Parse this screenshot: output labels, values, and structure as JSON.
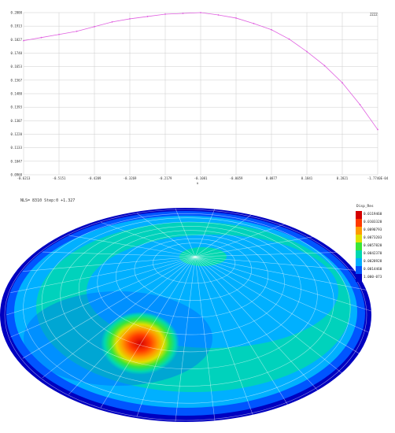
{
  "chart_data": {
    "type": "line",
    "legend_label": "ZZZZ",
    "legend_position": "top-right",
    "grid": true,
    "line_color": "#e060e0",
    "x_axis_label": "u",
    "x_ticks": [
      "-0.6213",
      "-0.5151",
      "-0.4209",
      "-0.3269",
      "-0.2179",
      "-0.1081",
      "-0.0059",
      "0.0877",
      "0.1841",
      "0.2821",
      "-1.7740E-04"
    ],
    "y_ticks": [
      "0.2000",
      "0.1913",
      "0.1827",
      "0.1740",
      "0.1653",
      "0.1567",
      "0.1480",
      "0.1393",
      "0.1307",
      "0.1220",
      "0.1133",
      "0.1047",
      "0.0960"
    ],
    "xlim": [
      0,
      10
    ],
    "ylim": [
      0.096,
      0.2
    ],
    "series": [
      {
        "x": [
          0,
          0.5,
          1,
          1.5,
          2,
          2.5,
          3,
          3.5,
          4,
          4.5,
          5,
          5.5,
          6,
          6.5,
          7,
          7.5,
          8,
          8.5,
          9,
          9.5,
          10
        ],
        "y": [
          0.182,
          0.184,
          0.186,
          0.188,
          0.191,
          0.194,
          0.196,
          0.1975,
          0.199,
          0.1995,
          0.2,
          0.1985,
          0.1965,
          0.193,
          0.189,
          0.183,
          0.175,
          0.166,
          0.155,
          0.141,
          0.125
        ]
      }
    ]
  },
  "contour": {
    "step_caption": "NLS= 8310 Step:0  +1.327",
    "legend_title": "Disp_Res",
    "legend_labels": [
      "0.0119460",
      "0.0103320",
      "0.0090793",
      "0.0073203",
      "0.0057820",
      "0.0042370",
      "0.0028928",
      "0.0014460",
      "1.000-073"
    ],
    "legend_colors": [
      "#d40000",
      "#ff3a00",
      "#ff9a00",
      "#e0e000",
      "#39e639",
      "#00d8b0",
      "#00b0ff",
      "#0055ff",
      "#0000c0"
    ]
  }
}
